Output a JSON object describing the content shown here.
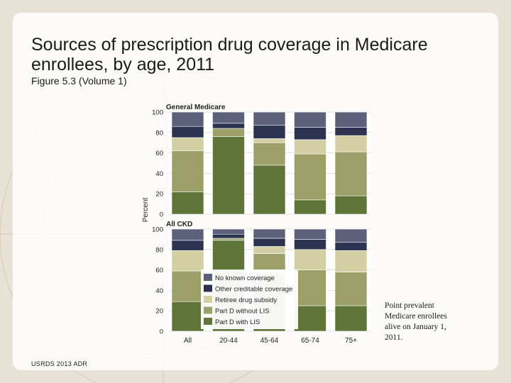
{
  "slide": {
    "title": "Sources of prescription drug coverage in Medicare enrollees, by age, 2011",
    "subtitle": "Figure 5.3 (Volume 1)",
    "note": "Point prevalent Medicare enrollees alive on January 1, 2011.",
    "footer": "USRDS 2013 ADR"
  },
  "chart_data": {
    "type": "bar",
    "stacked": true,
    "categories": [
      "All",
      "20-44",
      "45-64",
      "65-74",
      "75+"
    ],
    "ylabel": "Percent",
    "ylim": [
      0,
      100
    ],
    "yticks": [
      0,
      20,
      40,
      60,
      80,
      100
    ],
    "legend_position": "center, overlapping lower panel",
    "legend": [
      {
        "name": "No known coverage",
        "color": "#5c607a"
      },
      {
        "name": "Other creditable coverage",
        "color": "#2c3350"
      },
      {
        "name": "Retiree drug subsidy",
        "color": "#d4cfa3"
      },
      {
        "name": "Part D without LIS",
        "color": "#9c9f67"
      },
      {
        "name": "Part D with LIS",
        "color": "#5f7537"
      }
    ],
    "panels": [
      {
        "title": "General Medicare",
        "series": [
          {
            "name": "Part D with LIS",
            "values": [
              22,
              76,
              48,
              14,
              18
            ]
          },
          {
            "name": "Part D without LIS",
            "values": [
              40,
              8,
              22,
              45,
              43
            ]
          },
          {
            "name": "Retiree drug subsidy",
            "values": [
              13,
              0,
              4,
              14,
              16
            ]
          },
          {
            "name": "Other creditable coverage",
            "values": [
              11,
              5,
              13,
              12,
              8
            ]
          },
          {
            "name": "No known coverage",
            "values": [
              14,
              11,
              13,
              15,
              15
            ]
          }
        ]
      },
      {
        "title": "All CKD",
        "series": [
          {
            "name": "Part D with LIS",
            "values": [
              29,
              89,
              56,
              25,
              25
            ]
          },
          {
            "name": "Part D without LIS",
            "values": [
              30,
              2,
              20,
              35,
              33
            ]
          },
          {
            "name": "Retiree drug subsidy",
            "values": [
              20,
              0,
              7,
              20,
              21
            ]
          },
          {
            "name": "Other creditable coverage",
            "values": [
              10,
              4,
              8,
              10,
              8
            ]
          },
          {
            "name": "No known coverage",
            "values": [
              11,
              5,
              9,
              10,
              13
            ]
          }
        ]
      }
    ]
  }
}
